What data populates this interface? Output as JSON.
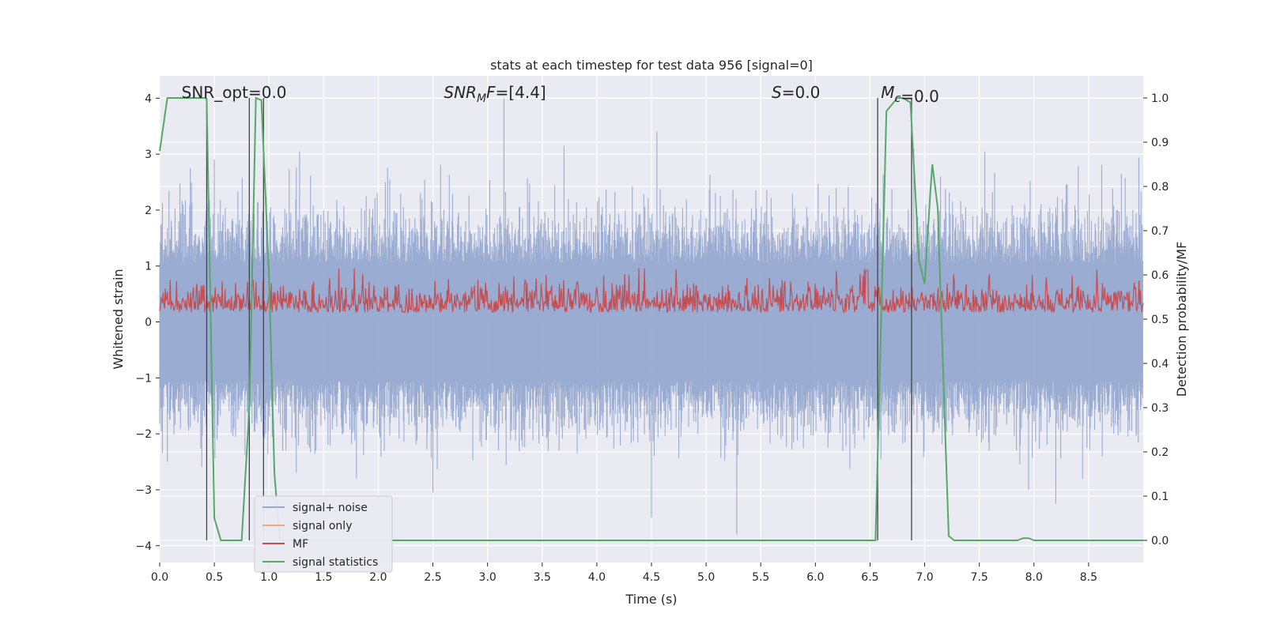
{
  "chart_data": {
    "type": "line",
    "title": "stats at each timestep for test data 956 [signal=0]",
    "xlabel": "Time (s)",
    "ylabel": "Whitened strain",
    "ylabel_right": "Detection probability/MF",
    "xlim": [
      0,
      9.0
    ],
    "ylim": [
      -4.3,
      4.4
    ],
    "ylim_right": [
      -0.05,
      1.05
    ],
    "x_ticks": [
      "0.0",
      "0.5",
      "1.0",
      "1.5",
      "2.0",
      "2.5",
      "3.0",
      "3.5",
      "4.0",
      "4.5",
      "5.0",
      "5.5",
      "6.0",
      "6.5",
      "7.0",
      "7.5",
      "8.0",
      "8.5"
    ],
    "y_ticks": [
      "4",
      "3",
      "2",
      "1",
      "0",
      "−1",
      "−2",
      "−3",
      "−4"
    ],
    "y_right_ticks": [
      "1.0",
      "0.9",
      "0.8",
      "0.7",
      "0.6",
      "0.5",
      "0.4",
      "0.3",
      "0.2",
      "0.1",
      "0.0"
    ],
    "grid": true,
    "legend_position": "lower-left",
    "annotations": [
      {
        "base": "SNR_opt",
        "sub": "",
        "value": "=0.0",
        "x": 0.2
      },
      {
        "base": "SNR",
        "sub": "M",
        "after": "F",
        "value": "=[4.4]",
        "x": 2.6
      },
      {
        "base": "S",
        "sub": "",
        "value": "=0.0",
        "x": 5.6
      },
      {
        "base": "M",
        "sub": "c",
        "value": "=0.0",
        "x": 6.6
      }
    ],
    "series": [
      {
        "name": "signal+ noise",
        "color": "#97a9d0",
        "axis": "left",
        "description": "whitened strain noise samples",
        "spikes": [
          {
            "x": 0.28,
            "y": 2.75
          },
          {
            "x": 0.5,
            "y": 2.9
          },
          {
            "x": 1.28,
            "y": 3.05
          },
          {
            "x": 3.15,
            "y": 4.0
          },
          {
            "x": 3.7,
            "y": 3.15
          },
          {
            "x": 4.55,
            "y": 3.4
          },
          {
            "x": 6.9,
            "y": 3.1
          },
          {
            "x": 7.55,
            "y": 3.05
          },
          {
            "x": 8.8,
            "y": 2.65
          },
          {
            "x": 2.5,
            "y": -3.05
          },
          {
            "x": 4.5,
            "y": -3.5
          },
          {
            "x": 5.28,
            "y": -3.8
          },
          {
            "x": 8.2,
            "y": -3.25
          },
          {
            "x": 7.95,
            "y": -3.0
          },
          {
            "x": 6.88,
            "y": -2.9
          },
          {
            "x": 1.25,
            "y": -2.7
          },
          {
            "x": 0.07,
            "y": -2.5
          },
          {
            "x": 1.8,
            "y": -2.8
          }
        ]
      },
      {
        "name": "signal only",
        "color": "#e8a88a",
        "axis": "left",
        "description": "zero (no signal)"
      },
      {
        "name": "MF",
        "color": "#c44e52",
        "axis": "right",
        "description": "matched filter output around 0.5-0.6"
      },
      {
        "name": "signal statistics",
        "color": "#55a868",
        "axis": "right",
        "points": [
          [
            0.0,
            0.88
          ],
          [
            0.07,
            1.0
          ],
          [
            0.2,
            1.0
          ],
          [
            0.35,
            1.0
          ],
          [
            0.42,
            1.0
          ],
          [
            0.43,
            0.995
          ],
          [
            0.5,
            0.05
          ],
          [
            0.56,
            0.0
          ],
          [
            0.75,
            0.0
          ],
          [
            0.82,
            0.3
          ],
          [
            0.88,
            1.0
          ],
          [
            0.93,
            0.995
          ],
          [
            1.0,
            0.6
          ],
          [
            1.05,
            0.15
          ],
          [
            1.1,
            0.0
          ],
          [
            2.0,
            0.0
          ],
          [
            6.3,
            0.0
          ],
          [
            6.55,
            0.0
          ],
          [
            6.65,
            0.97
          ],
          [
            6.7,
            0.985
          ],
          [
            6.75,
            1.0
          ],
          [
            6.8,
            1.0
          ],
          [
            6.87,
            0.99
          ],
          [
            6.9,
            0.85
          ],
          [
            6.95,
            0.63
          ],
          [
            7.0,
            0.58
          ],
          [
            7.05,
            0.78
          ],
          [
            7.07,
            0.85
          ],
          [
            7.12,
            0.75
          ],
          [
            7.18,
            0.3
          ],
          [
            7.22,
            0.01
          ],
          [
            7.27,
            0.0
          ],
          [
            7.5,
            0.0
          ],
          [
            7.85,
            0.0
          ],
          [
            7.9,
            0.005
          ],
          [
            7.95,
            0.005
          ],
          [
            8.0,
            0.0
          ],
          [
            8.5,
            0.0
          ],
          [
            9.0,
            0.0
          ]
        ]
      }
    ],
    "vertical_lines": [
      0.43,
      0.82,
      0.95,
      6.57,
      6.88
    ]
  }
}
